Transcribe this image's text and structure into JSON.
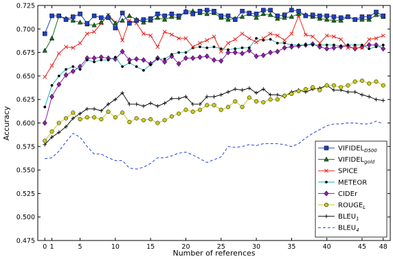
{
  "chart_data": {
    "type": "line",
    "title": "",
    "xlabel": "Number of references",
    "ylabel": "Accuracy",
    "xlim": [
      -1,
      49
    ],
    "ylim": [
      0.475,
      0.725
    ],
    "xticks": [
      0,
      1,
      5,
      10,
      15,
      20,
      25,
      30,
      35,
      40,
      45,
      48
    ],
    "yticks": [
      0.475,
      0.5,
      0.525,
      0.55,
      0.575,
      0.6,
      0.625,
      0.65,
      0.675,
      0.7,
      0.725
    ],
    "grid": false,
    "legend_position": "lower-right",
    "x": [
      0,
      1,
      2,
      3,
      4,
      5,
      6,
      7,
      8,
      9,
      10,
      11,
      12,
      13,
      14,
      15,
      16,
      17,
      18,
      19,
      20,
      21,
      22,
      23,
      24,
      25,
      26,
      27,
      28,
      29,
      30,
      31,
      32,
      33,
      34,
      35,
      36,
      37,
      38,
      39,
      40,
      41,
      42,
      43,
      44,
      45,
      46,
      47,
      48
    ],
    "series": [
      {
        "name": "VIFIDEL",
        "subscript": "D500",
        "color": "#1f3fbf",
        "line_style": "solid",
        "marker": "square",
        "values": [
          0.695,
          0.714,
          0.714,
          0.71,
          0.713,
          0.716,
          0.706,
          0.714,
          0.712,
          0.712,
          0.701,
          0.717,
          0.706,
          0.709,
          0.71,
          0.711,
          0.716,
          0.714,
          0.716,
          0.714,
          0.718,
          0.716,
          0.719,
          0.72,
          0.719,
          0.714,
          0.714,
          0.71,
          0.719,
          0.717,
          0.716,
          0.72,
          0.72,
          0.714,
          0.715,
          0.72,
          0.719,
          0.714,
          0.715,
          0.714,
          0.714,
          0.713,
          0.712,
          0.713,
          0.71,
          0.713,
          0.713,
          0.718,
          0.714
        ]
      },
      {
        "name": "VIFIDEL",
        "subscript": "gold",
        "color": "#1a6d1a",
        "line_style": "solid",
        "marker": "triangle",
        "values": [
          0.677,
          0.69,
          0.714,
          0.711,
          0.709,
          0.707,
          0.705,
          0.704,
          0.707,
          0.714,
          0.706,
          0.709,
          0.714,
          0.71,
          0.707,
          0.709,
          0.712,
          0.71,
          0.713,
          0.712,
          0.719,
          0.719,
          0.717,
          0.716,
          0.717,
          0.712,
          0.71,
          0.711,
          0.713,
          0.716,
          0.712,
          0.716,
          0.715,
          0.711,
          0.712,
          0.713,
          0.716,
          0.715,
          0.713,
          0.711,
          0.71,
          0.709,
          0.709,
          0.713,
          0.71,
          0.71,
          0.71,
          0.715,
          0.713
        ]
      },
      {
        "name": "SPICE",
        "subscript": "",
        "color": "#e8251e",
        "line_style": "solid",
        "marker": "x",
        "values": [
          0.649,
          0.661,
          0.674,
          0.681,
          0.68,
          0.685,
          0.695,
          0.697,
          0.706,
          0.715,
          0.707,
          0.688,
          0.709,
          0.706,
          0.695,
          0.693,
          0.681,
          0.697,
          0.694,
          0.69,
          0.69,
          0.681,
          0.685,
          0.688,
          0.692,
          0.676,
          0.685,
          0.689,
          0.695,
          0.69,
          0.686,
          0.69,
          0.695,
          0.693,
          0.688,
          0.695,
          0.714,
          0.694,
          0.692,
          0.685,
          0.693,
          0.692,
          0.689,
          0.68,
          0.68,
          0.68,
          0.689,
          0.69,
          0.693
        ]
      },
      {
        "name": "METEOR",
        "subscript": "",
        "color": "#1ab5b5",
        "line_style": "solid",
        "marker": "dot",
        "values": [
          0.617,
          0.64,
          0.65,
          0.657,
          0.66,
          0.657,
          0.667,
          0.665,
          0.667,
          0.667,
          0.67,
          0.66,
          0.664,
          0.66,
          0.656,
          0.662,
          0.668,
          0.668,
          0.673,
          0.675,
          0.675,
          0.68,
          0.681,
          0.68,
          0.681,
          0.679,
          0.678,
          0.679,
          0.68,
          0.68,
          0.69,
          0.688,
          0.689,
          0.685,
          0.685,
          0.683,
          0.683,
          0.683,
          0.683,
          0.683,
          0.683,
          0.683,
          0.682,
          0.683,
          0.683,
          0.683,
          0.679,
          0.681,
          0.683
        ]
      },
      {
        "name": "CIDEr",
        "subscript": "",
        "color": "#8c1ea8",
        "line_style": "solid",
        "marker": "diamond",
        "values": [
          0.6,
          0.628,
          0.641,
          0.651,
          0.655,
          0.66,
          0.669,
          0.669,
          0.67,
          0.669,
          0.668,
          0.676,
          0.667,
          0.668,
          0.667,
          0.663,
          0.669,
          0.665,
          0.671,
          0.663,
          0.669,
          0.669,
          0.67,
          0.671,
          0.667,
          0.666,
          0.675,
          0.675,
          0.674,
          0.677,
          0.671,
          0.672,
          0.675,
          0.676,
          0.68,
          0.681,
          0.682,
          0.683,
          0.684,
          0.681,
          0.679,
          0.68,
          0.681,
          0.682,
          0.679,
          0.681,
          0.683,
          0.683,
          0.679
        ]
      },
      {
        "name": "ROUGE",
        "subscript": "L",
        "color": "#c8c81e",
        "line_style": "solid",
        "marker": "circle",
        "values": [
          0.581,
          0.591,
          0.6,
          0.605,
          0.611,
          0.604,
          0.606,
          0.606,
          0.604,
          0.612,
          0.606,
          0.611,
          0.601,
          0.605,
          0.603,
          0.604,
          0.6,
          0.603,
          0.607,
          0.61,
          0.614,
          0.612,
          0.614,
          0.619,
          0.619,
          0.614,
          0.617,
          0.623,
          0.617,
          0.627,
          0.623,
          0.622,
          0.625,
          0.625,
          0.629,
          0.631,
          0.634,
          0.636,
          0.638,
          0.635,
          0.64,
          0.64,
          0.638,
          0.64,
          0.644,
          0.645,
          0.642,
          0.644,
          0.64
        ]
      },
      {
        "name": "BLEU",
        "subscript": "1",
        "color": "#111111",
        "line_style": "solid",
        "marker": "plus",
        "values": [
          0.577,
          0.585,
          0.59,
          0.596,
          0.605,
          0.61,
          0.615,
          0.615,
          0.613,
          0.62,
          0.625,
          0.632,
          0.62,
          0.62,
          0.618,
          0.621,
          0.618,
          0.621,
          0.626,
          0.626,
          0.628,
          0.62,
          0.62,
          0.628,
          0.628,
          0.63,
          0.633,
          0.636,
          0.635,
          0.637,
          0.632,
          0.636,
          0.63,
          0.63,
          0.628,
          0.633,
          0.635,
          0.633,
          0.636,
          0.637,
          0.64,
          0.635,
          0.635,
          0.633,
          0.633,
          0.63,
          0.628,
          0.625,
          0.624
        ]
      },
      {
        "name": "BLEU",
        "subscript": "4",
        "color": "#1f3fdf",
        "line_style": "dashed",
        "marker": "none",
        "values": [
          0.562,
          0.563,
          0.57,
          0.58,
          0.589,
          0.585,
          0.575,
          0.567,
          0.567,
          0.563,
          0.56,
          0.56,
          0.552,
          0.551,
          0.553,
          0.557,
          0.563,
          0.563,
          0.565,
          0.568,
          0.569,
          0.566,
          0.562,
          0.558,
          0.561,
          0.564,
          0.575,
          0.574,
          0.575,
          0.577,
          0.576,
          0.578,
          0.578,
          0.578,
          0.577,
          0.575,
          0.578,
          0.584,
          0.589,
          0.593,
          0.597,
          0.599,
          0.599,
          0.6,
          0.6,
          0.599,
          0.599,
          0.602,
          0.599
        ]
      }
    ]
  }
}
